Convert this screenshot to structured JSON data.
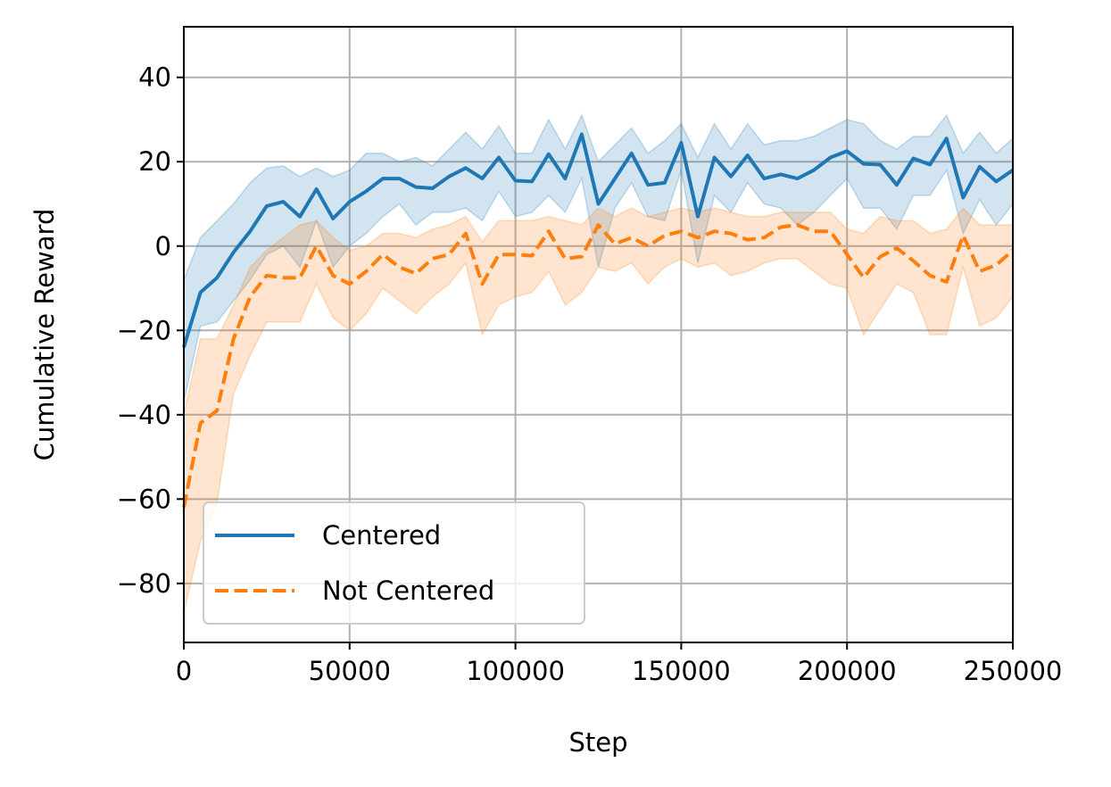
{
  "chart_data": {
    "type": "line",
    "xlabel": "Step",
    "ylabel": "Cumulative Reward",
    "xlim": [
      0,
      250000
    ],
    "ylim": [
      -94,
      52
    ],
    "xticks": [
      0,
      50000,
      100000,
      150000,
      200000,
      250000
    ],
    "xtick_labels": [
      "0",
      "50000",
      "100000",
      "150000",
      "200000",
      "250000"
    ],
    "yticks": [
      -80,
      -60,
      -40,
      -20,
      0,
      20,
      40
    ],
    "ytick_labels": [
      "−80",
      "−60",
      "−40",
      "−20",
      "0",
      "20",
      "40"
    ],
    "grid": true,
    "legend_position": "lower-left",
    "series": [
      {
        "name": "Centered",
        "color": "#1f77b4",
        "linestyle": "solid",
        "x": [
          0,
          5000,
          10000,
          15000,
          20000,
          25000,
          30000,
          35000,
          40000,
          45000,
          50000,
          55000,
          60000,
          65000,
          70000,
          75000,
          80000,
          85000,
          90000,
          95000,
          100000,
          105000,
          110000,
          115000,
          120000,
          125000,
          130000,
          135000,
          140000,
          145000,
          150000,
          155000,
          160000,
          165000,
          170000,
          175000,
          180000,
          185000,
          190000,
          195000,
          200000,
          205000,
          210000,
          215000,
          220000,
          225000,
          230000,
          235000,
          240000,
          245000,
          250000
        ],
        "y": [
          -24,
          -11,
          -7.5,
          -1.5,
          3.5,
          9.5,
          10.5,
          7,
          13.5,
          6.5,
          10.5,
          13,
          16,
          16,
          14,
          13.7,
          16.5,
          18.5,
          16,
          21,
          15.5,
          15.3,
          21.8,
          16,
          26.5,
          10,
          16,
          22,
          14.5,
          15,
          24.5,
          7,
          21,
          16.5,
          21.5,
          16,
          17,
          16,
          18,
          21,
          22.5,
          19.5,
          19.3,
          14.5,
          20.8,
          19.3,
          25.5,
          11.5,
          18.8,
          15.3,
          18
        ],
        "lower": [
          -37,
          -19,
          -18,
          -13,
          -8,
          -2,
          0,
          -5,
          6,
          -5,
          0,
          3,
          7,
          10,
          5,
          8,
          8,
          9,
          6,
          13,
          7,
          8,
          12,
          8,
          16,
          -5,
          9,
          15,
          7,
          6,
          18,
          -4,
          12,
          8,
          15,
          10,
          9,
          5,
          8,
          12,
          16,
          9,
          9,
          4,
          12,
          12,
          18,
          3,
          11,
          5,
          10
        ],
        "upper": [
          -8,
          2,
          6,
          10,
          15,
          18.5,
          19,
          16.5,
          18.5,
          16.5,
          18,
          22,
          22,
          20,
          21,
          19,
          23,
          27,
          23,
          28.5,
          22,
          22,
          30,
          23,
          31,
          20,
          24,
          28,
          22,
          25,
          29,
          21,
          29,
          23,
          29,
          24,
          25,
          25,
          26,
          28,
          30,
          29,
          25,
          23,
          26,
          26,
          31,
          22,
          27,
          22,
          25.5
        ]
      },
      {
        "name": "Not Centered",
        "color": "#ff7f0e",
        "linestyle": "dashed",
        "x": [
          0,
          5000,
          10000,
          15000,
          20000,
          25000,
          30000,
          35000,
          40000,
          45000,
          50000,
          55000,
          60000,
          65000,
          70000,
          75000,
          80000,
          85000,
          90000,
          95000,
          100000,
          105000,
          110000,
          115000,
          120000,
          125000,
          130000,
          135000,
          140000,
          145000,
          150000,
          155000,
          160000,
          165000,
          170000,
          175000,
          180000,
          185000,
          190000,
          195000,
          200000,
          205000,
          210000,
          215000,
          220000,
          225000,
          230000,
          235000,
          240000,
          245000,
          250000
        ],
        "y": [
          -62,
          -42,
          -39,
          -22,
          -12,
          -7,
          -7.5,
          -7.5,
          0,
          -7,
          -9,
          -6,
          -2,
          -5,
          -6.5,
          -3,
          -2,
          3,
          -9,
          -2,
          -2,
          -2.3,
          3.5,
          -3,
          -2.5,
          5,
          0.5,
          2,
          0,
          2.5,
          3.5,
          2,
          3.5,
          3,
          1.5,
          2,
          4.5,
          5,
          3.5,
          3.5,
          -2,
          -7.5,
          -2.5,
          -0.5,
          -3.5,
          -7,
          -8.5,
          2.5,
          -6,
          -4.5,
          -1
        ],
        "lower": [
          -87,
          -70,
          -61,
          -35,
          -26,
          -18,
          -18,
          -18,
          -9,
          -17,
          -20,
          -16,
          -10,
          -13,
          -16,
          -12,
          -9,
          -4,
          -21,
          -14,
          -12,
          -11,
          -6,
          -14,
          -11,
          -5,
          -6,
          -4,
          -9,
          -5,
          -3,
          -5,
          -4,
          -7,
          -6,
          -4,
          -3,
          -3,
          -6,
          -9,
          -10,
          -21,
          -15,
          -9,
          -11,
          -21,
          -21,
          -5,
          -19,
          -17,
          -12
        ],
        "upper": [
          -40,
          -22,
          -22,
          -14,
          -5,
          -1,
          2,
          5,
          6,
          2,
          -1,
          0,
          3,
          3,
          2,
          4,
          5,
          7,
          1,
          6,
          6,
          6,
          7,
          6,
          5,
          9,
          7,
          9,
          7,
          8,
          9,
          8,
          9,
          8,
          7,
          7,
          8,
          8,
          8,
          8,
          4,
          3,
          7,
          6,
          6,
          3,
          4,
          9,
          5,
          5,
          5
        ]
      }
    ]
  }
}
